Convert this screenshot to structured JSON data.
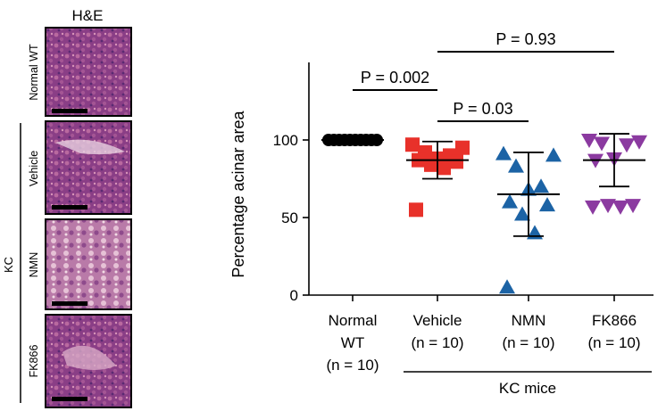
{
  "panel": {
    "stain_title": "H&E",
    "group_label": "KC",
    "row_labels": [
      "Normal WT",
      "Vehicle",
      "NMN",
      "FK866"
    ]
  },
  "chart_data": {
    "type": "scatter",
    "ylabel": "Percentage acinar area",
    "ylim": [
      0,
      150
    ],
    "yticks": [
      0,
      50,
      100
    ],
    "categories": [
      {
        "name": "Normal WT",
        "n_label": "(n = 10)",
        "lines": [
          "Normal",
          "WT",
          "(n = 10)"
        ]
      },
      {
        "name": "Vehicle",
        "n_label": "(n = 10)",
        "lines": [
          "Vehicle",
          "(n = 10)"
        ]
      },
      {
        "name": "NMN",
        "n_label": "(n = 10)",
        "lines": [
          "NMN",
          "(n = 10)"
        ]
      },
      {
        "name": "FK866",
        "n_label": "(n = 10)",
        "lines": [
          "FK866",
          "(n = 10)"
        ]
      }
    ],
    "group_label": "KC mice",
    "series": [
      {
        "category": "Normal WT",
        "marker": "circle",
        "color": "#000000",
        "values": [
          100,
          100,
          100,
          100,
          100,
          100,
          100,
          100,
          100,
          100
        ],
        "mean": 100,
        "sd_low": 100,
        "sd_high": 100
      },
      {
        "category": "Vehicle",
        "marker": "square",
        "color": "#e8312a",
        "values": [
          97,
          95,
          92,
          90,
          88,
          87,
          86,
          84,
          82,
          55
        ],
        "mean": 87,
        "sd_low": 75,
        "sd_high": 99
      },
      {
        "category": "NMN",
        "marker": "triangle-up",
        "color": "#1c63a5",
        "values": [
          91,
          90,
          83,
          70,
          68,
          60,
          58,
          52,
          40,
          5
        ],
        "mean": 65,
        "sd_low": 38,
        "sd_high": 92
      },
      {
        "category": "FK866",
        "marker": "triangle-down",
        "color": "#8b3aa0",
        "values": [
          100,
          99,
          98,
          97,
          88,
          87,
          58,
          58,
          57,
          57
        ],
        "mean": 87,
        "sd_low": 70,
        "sd_high": 104
      }
    ],
    "annotations": [
      {
        "text": "P = 0.002",
        "from": 0,
        "to": 1,
        "level": 1
      },
      {
        "text": "P = 0.03",
        "from": 1,
        "to": 2,
        "level": 0
      },
      {
        "text": "P = 0.93",
        "from": 1,
        "to": 3,
        "level": 2
      }
    ]
  }
}
